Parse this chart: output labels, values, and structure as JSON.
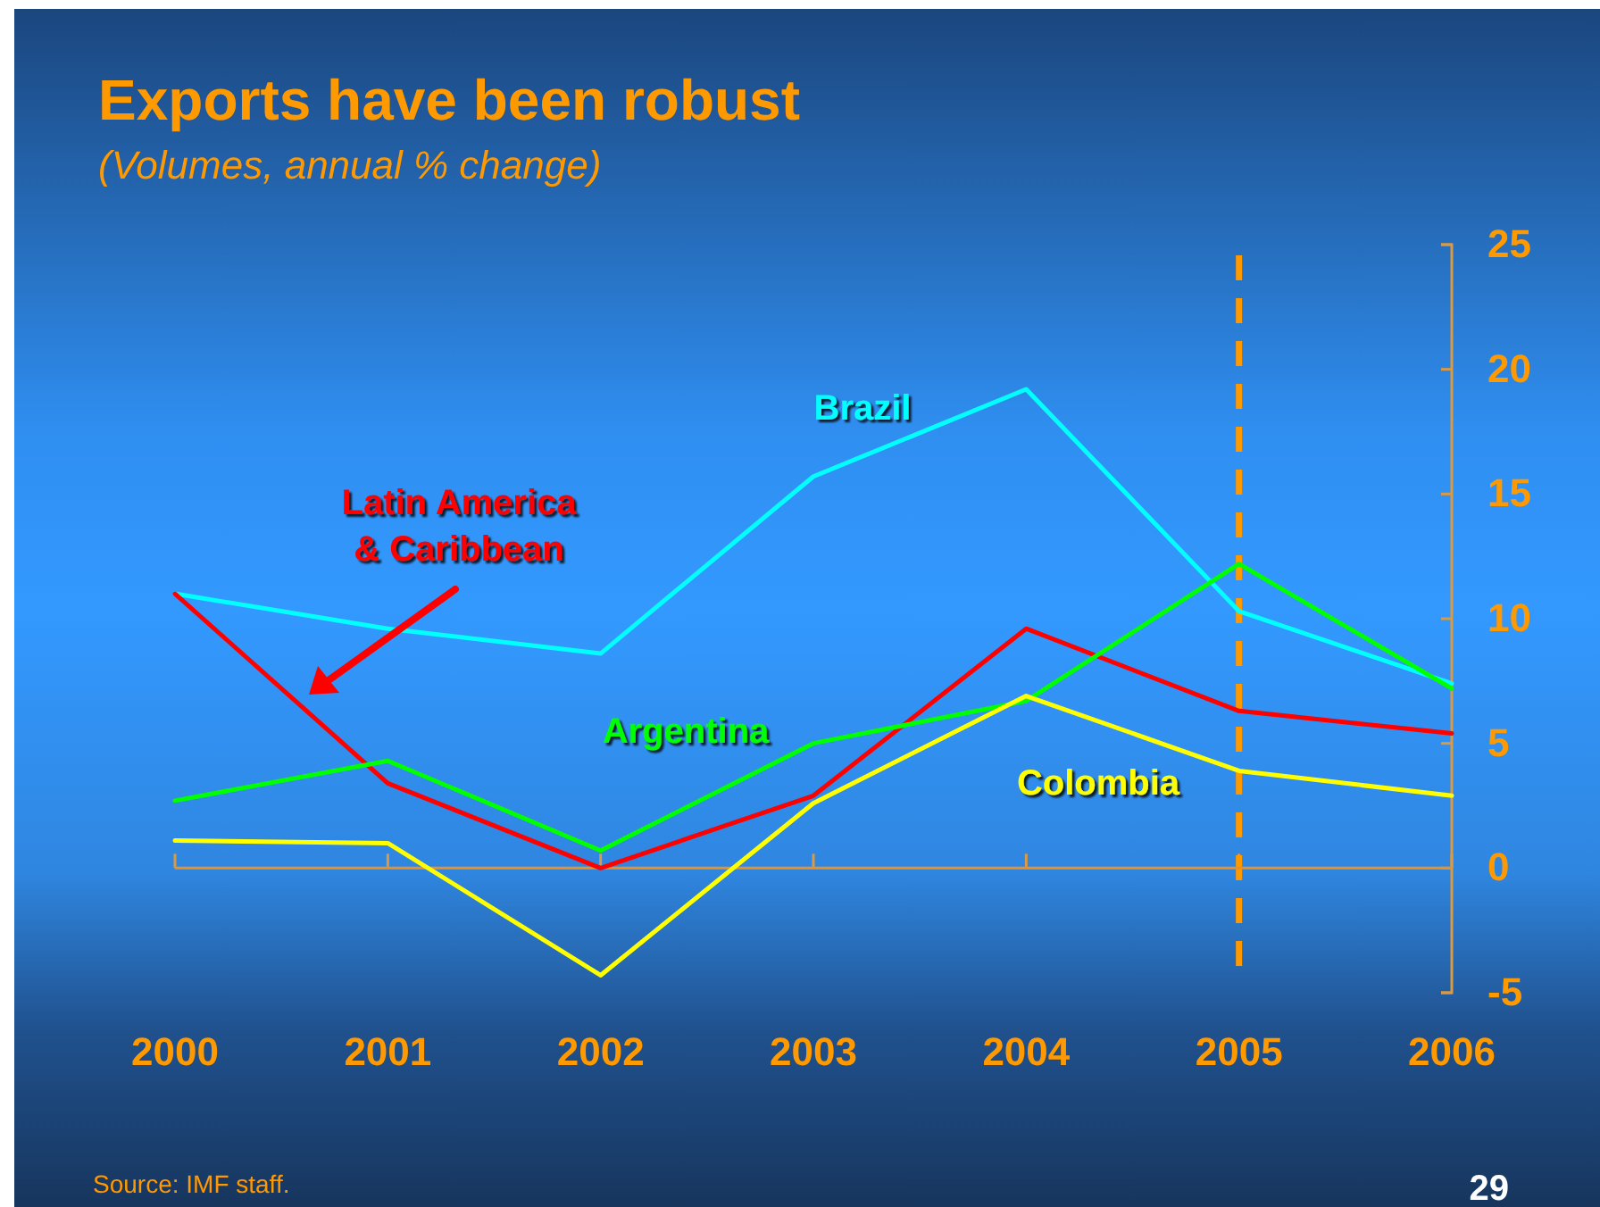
{
  "chart_data": {
    "type": "line",
    "title": "Exports have been robust",
    "subtitle": "(Volumes, annual % change)",
    "categories": [
      "2000",
      "2001",
      "2002",
      "2003",
      "2004",
      "2005",
      "2006"
    ],
    "series": [
      {
        "name": "Brazil",
        "color": "#00ffff",
        "values": [
          11.0,
          9.6,
          8.6,
          15.7,
          19.2,
          10.3,
          7.4
        ]
      },
      {
        "name": "Latin America & Caribbean",
        "color": "#ff0000",
        "values": [
          11.0,
          3.4,
          0.0,
          2.9,
          9.6,
          6.3,
          5.4
        ]
      },
      {
        "name": "Argentina",
        "color": "#00ff00",
        "values": [
          2.7,
          4.3,
          0.7,
          5.0,
          6.7,
          12.2,
          7.2
        ]
      },
      {
        "name": "Colombia",
        "color": "#ffff00",
        "values": [
          1.1,
          1.0,
          -4.3,
          2.6,
          6.9,
          3.9,
          2.9
        ]
      }
    ],
    "ylim": [
      -5,
      25
    ],
    "yticks": [
      -5,
      0,
      5,
      10,
      15,
      20,
      25
    ],
    "ref_lines": [
      {
        "axis": "x",
        "value": "2005",
        "color": "#ff9900",
        "line_style": "dashed"
      },
      {
        "axis": "y",
        "value": 0,
        "color": "#e8902a",
        "line_style": "solid"
      }
    ],
    "annotations": [
      "Source: IMF staff.",
      "29"
    ]
  }
}
